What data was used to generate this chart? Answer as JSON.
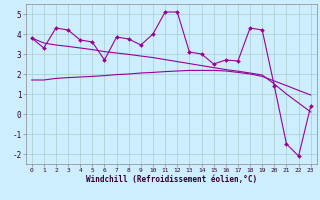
{
  "xlabel": "Windchill (Refroidissement éolien,°C)",
  "background_color": "#cceeff",
  "grid_color": "#aacccc",
  "line_color": "#990099",
  "x": [
    0,
    1,
    2,
    3,
    4,
    5,
    6,
    7,
    8,
    9,
    10,
    11,
    12,
    13,
    14,
    15,
    16,
    17,
    18,
    19,
    20,
    21,
    22,
    23
  ],
  "series1": [
    3.8,
    3.3,
    4.3,
    4.2,
    3.7,
    3.6,
    2.7,
    3.85,
    3.75,
    3.45,
    4.0,
    5.1,
    5.1,
    3.1,
    3.0,
    2.5,
    2.7,
    2.65,
    4.3,
    4.2,
    1.4,
    -1.5,
    -2.1,
    0.4
  ],
  "series_linear": [
    3.8,
    3.55,
    3.45,
    3.38,
    3.3,
    3.22,
    3.12,
    3.05,
    2.98,
    2.9,
    2.82,
    2.72,
    2.62,
    2.52,
    2.42,
    2.32,
    2.22,
    2.14,
    2.05,
    1.95,
    1.5,
    1.0,
    0.55,
    0.1
  ],
  "series_flat": [
    1.7,
    1.7,
    1.78,
    1.82,
    1.85,
    1.88,
    1.92,
    1.97,
    2.0,
    2.05,
    2.08,
    2.12,
    2.15,
    2.18,
    2.18,
    2.18,
    2.15,
    2.08,
    2.0,
    1.88,
    1.65,
    1.42,
    1.18,
    0.95
  ],
  "ylim": [
    -2.5,
    5.5
  ],
  "yticks": [
    -2,
    -1,
    0,
    1,
    2,
    3,
    4,
    5
  ],
  "xticks": [
    0,
    1,
    2,
    3,
    4,
    5,
    6,
    7,
    8,
    9,
    10,
    11,
    12,
    13,
    14,
    15,
    16,
    17,
    18,
    19,
    20,
    21,
    22,
    23
  ],
  "xtick_labels": [
    "0",
    "1",
    "2",
    "3",
    "4",
    "5",
    "6",
    "7",
    "8",
    "9",
    "10",
    "11",
    "12",
    "13",
    "14",
    "15",
    "16",
    "17",
    "18",
    "19",
    "20",
    "21",
    "22",
    "23"
  ]
}
